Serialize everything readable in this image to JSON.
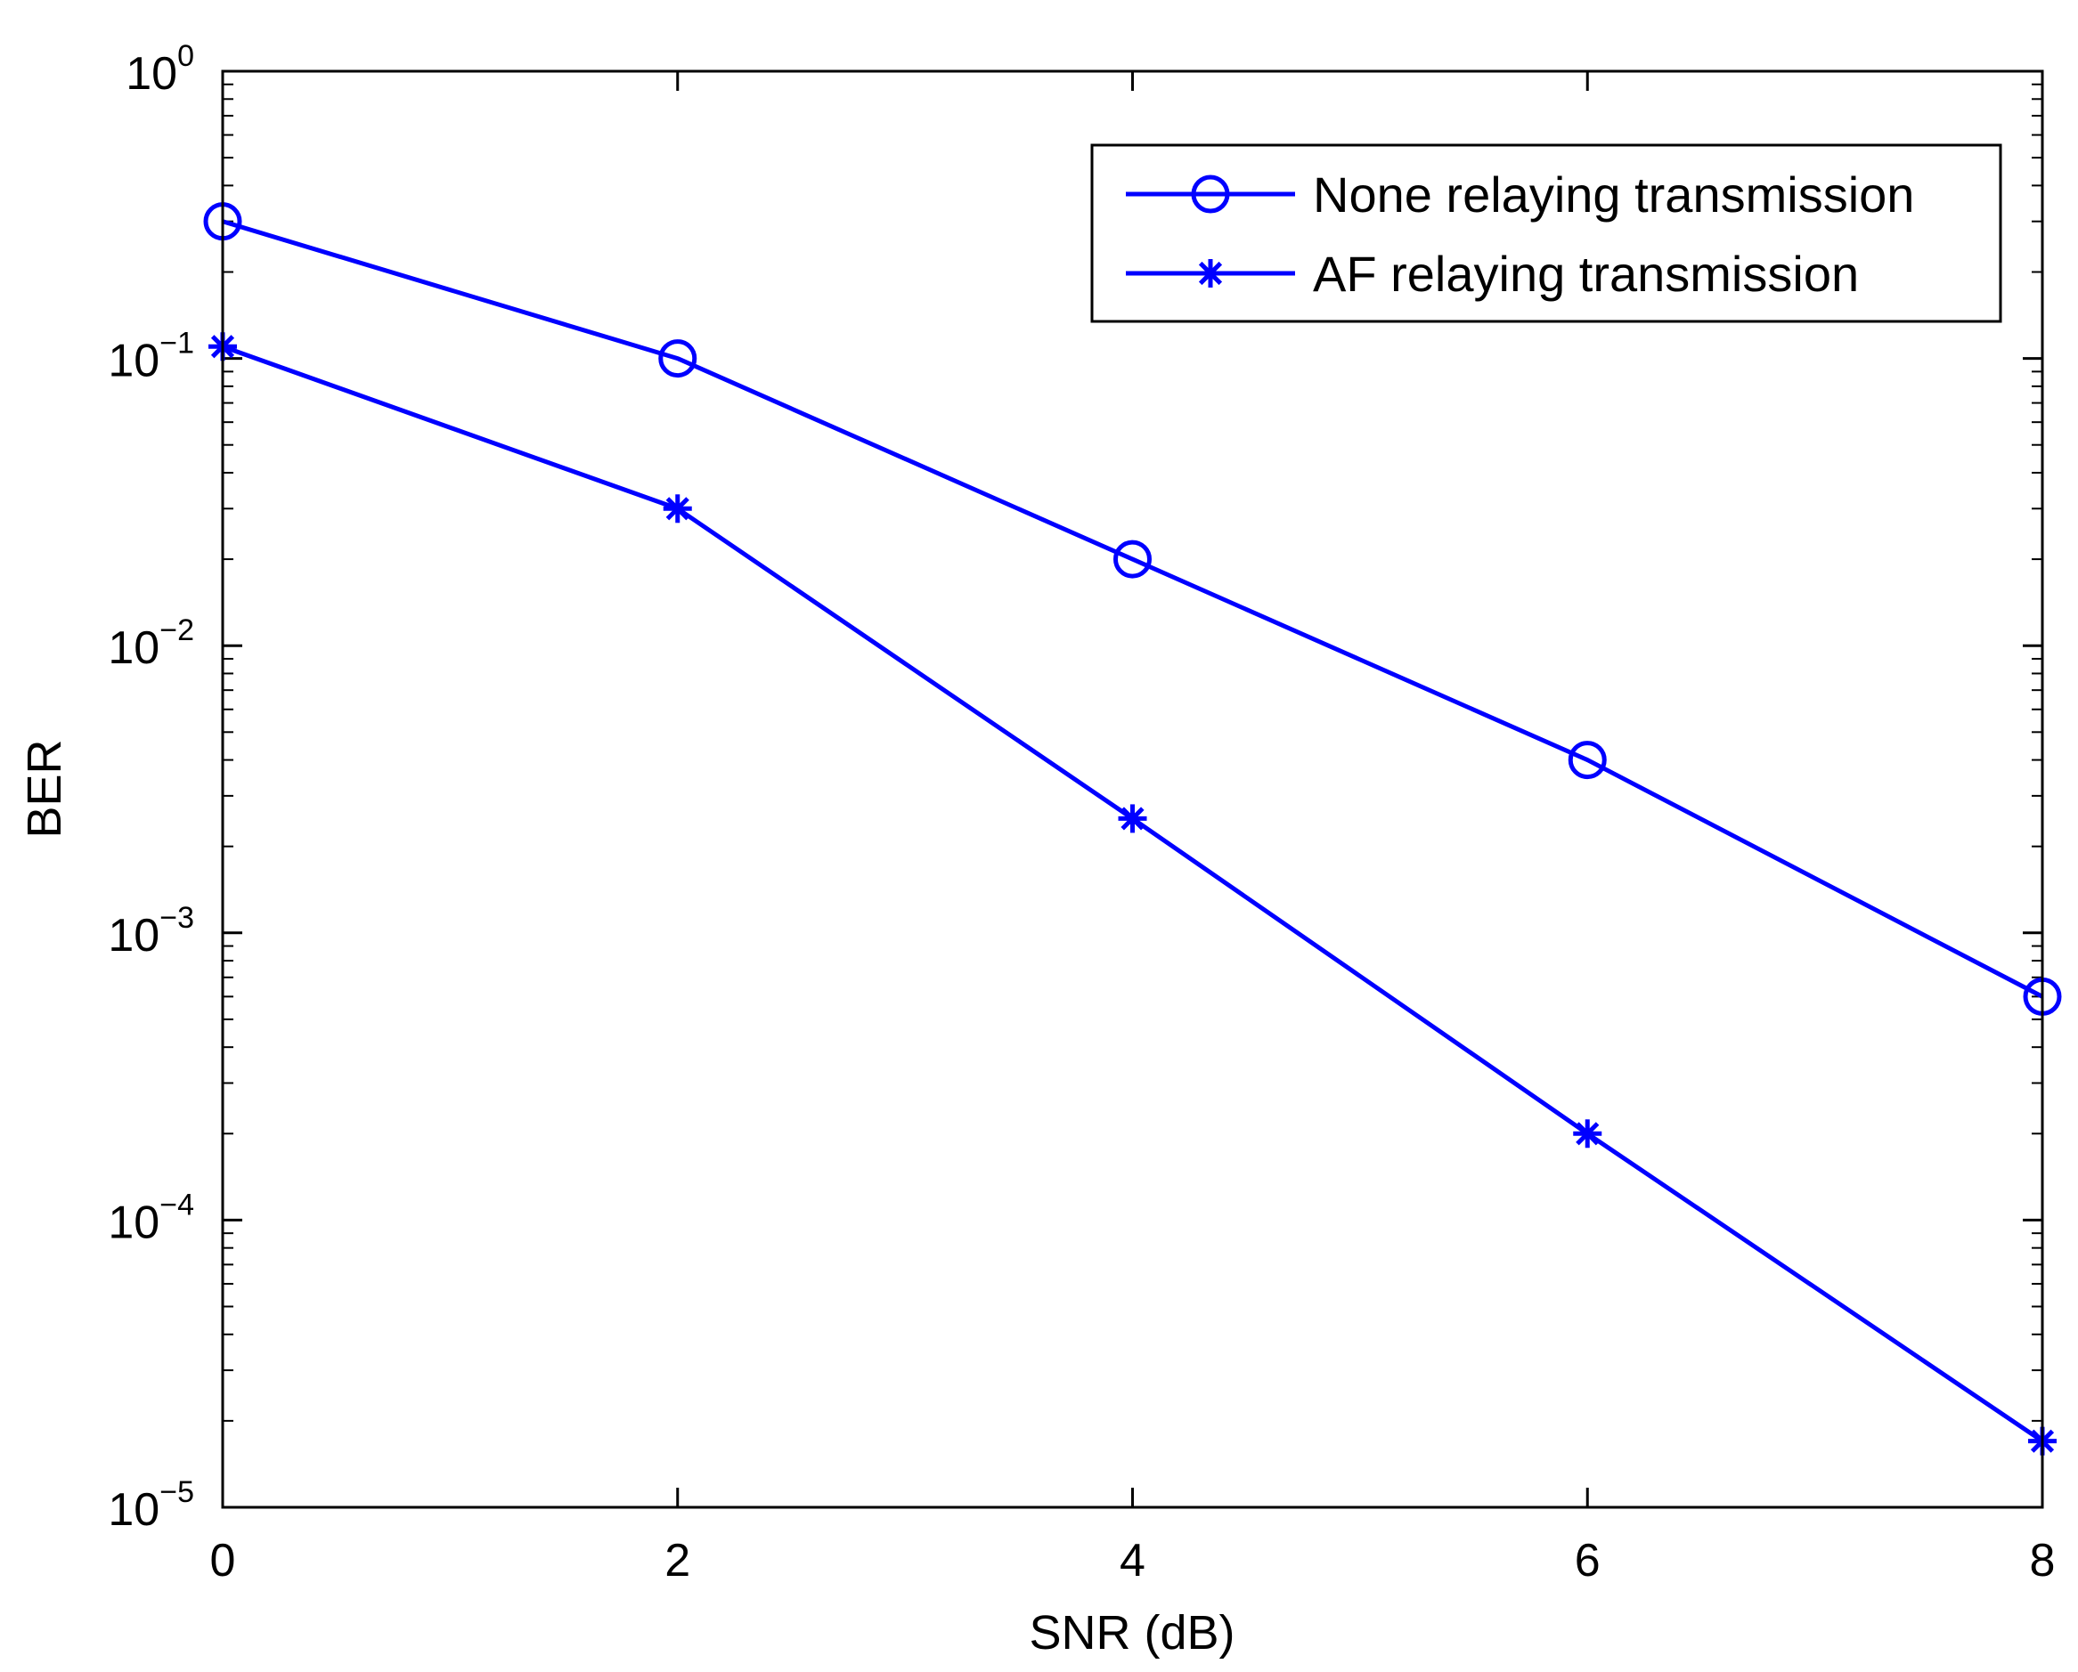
{
  "chart_data": {
    "type": "line",
    "title": "",
    "xlabel": "SNR (dB)",
    "ylabel": "BER",
    "yscale": "log",
    "xlim": [
      0,
      8
    ],
    "ylim": [
      1e-05,
      1
    ],
    "grid": false,
    "legend_position": "top-right",
    "x_ticks": [
      "0",
      "2",
      "4",
      "6",
      "8"
    ],
    "y_ticks": [
      {
        "base": "10",
        "exp": "0"
      },
      {
        "base": "10",
        "exp": "−1"
      },
      {
        "base": "10",
        "exp": "−2"
      },
      {
        "base": "10",
        "exp": "−3"
      },
      {
        "base": "10",
        "exp": "−4"
      },
      {
        "base": "10",
        "exp": "−5"
      }
    ],
    "x": [
      0,
      2,
      4,
      6,
      8
    ],
    "series": [
      {
        "name": "None relaying transmission",
        "marker": "circle",
        "color": "#0000ff",
        "values": [
          0.3,
          0.1,
          0.02,
          0.004,
          0.0006
        ]
      },
      {
        "name": "AF relaying transmission",
        "marker": "star",
        "color": "#0000ff",
        "values": [
          0.11,
          0.03,
          0.0025,
          0.0002,
          1.7e-05
        ]
      }
    ]
  }
}
